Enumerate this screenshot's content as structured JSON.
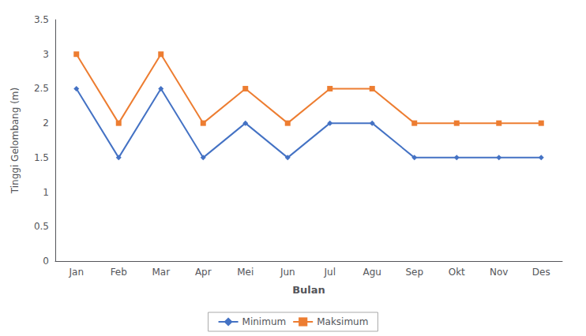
{
  "chart_data": {
    "type": "line",
    "categories": [
      "Jan",
      "Feb",
      "Mar",
      "Apr",
      "Mei",
      "Jun",
      "Jul",
      "Agu",
      "Sep",
      "Okt",
      "Nov",
      "Des"
    ],
    "series": [
      {
        "name": "Minimum",
        "color": "#4472C4",
        "marker": "diamond",
        "values": [
          2.5,
          1.5,
          2.5,
          1.5,
          2.0,
          1.5,
          2.0,
          2.0,
          1.5,
          1.5,
          1.5,
          1.5
        ]
      },
      {
        "name": "Maksimum",
        "color": "#ED7D31",
        "marker": "square",
        "values": [
          3.0,
          2.0,
          3.0,
          2.0,
          2.5,
          2.0,
          2.5,
          2.5,
          2.0,
          2.0,
          2.0,
          2.0
        ]
      }
    ],
    "xlabel": "Bulan",
    "ylabel": "Tinggi Gelombang (m)",
    "ylim": [
      0,
      3.5
    ],
    "yticks": [
      0,
      0.5,
      1,
      1.5,
      2,
      2.5,
      3,
      3.5
    ],
    "grid": false,
    "legend": "bottom"
  }
}
